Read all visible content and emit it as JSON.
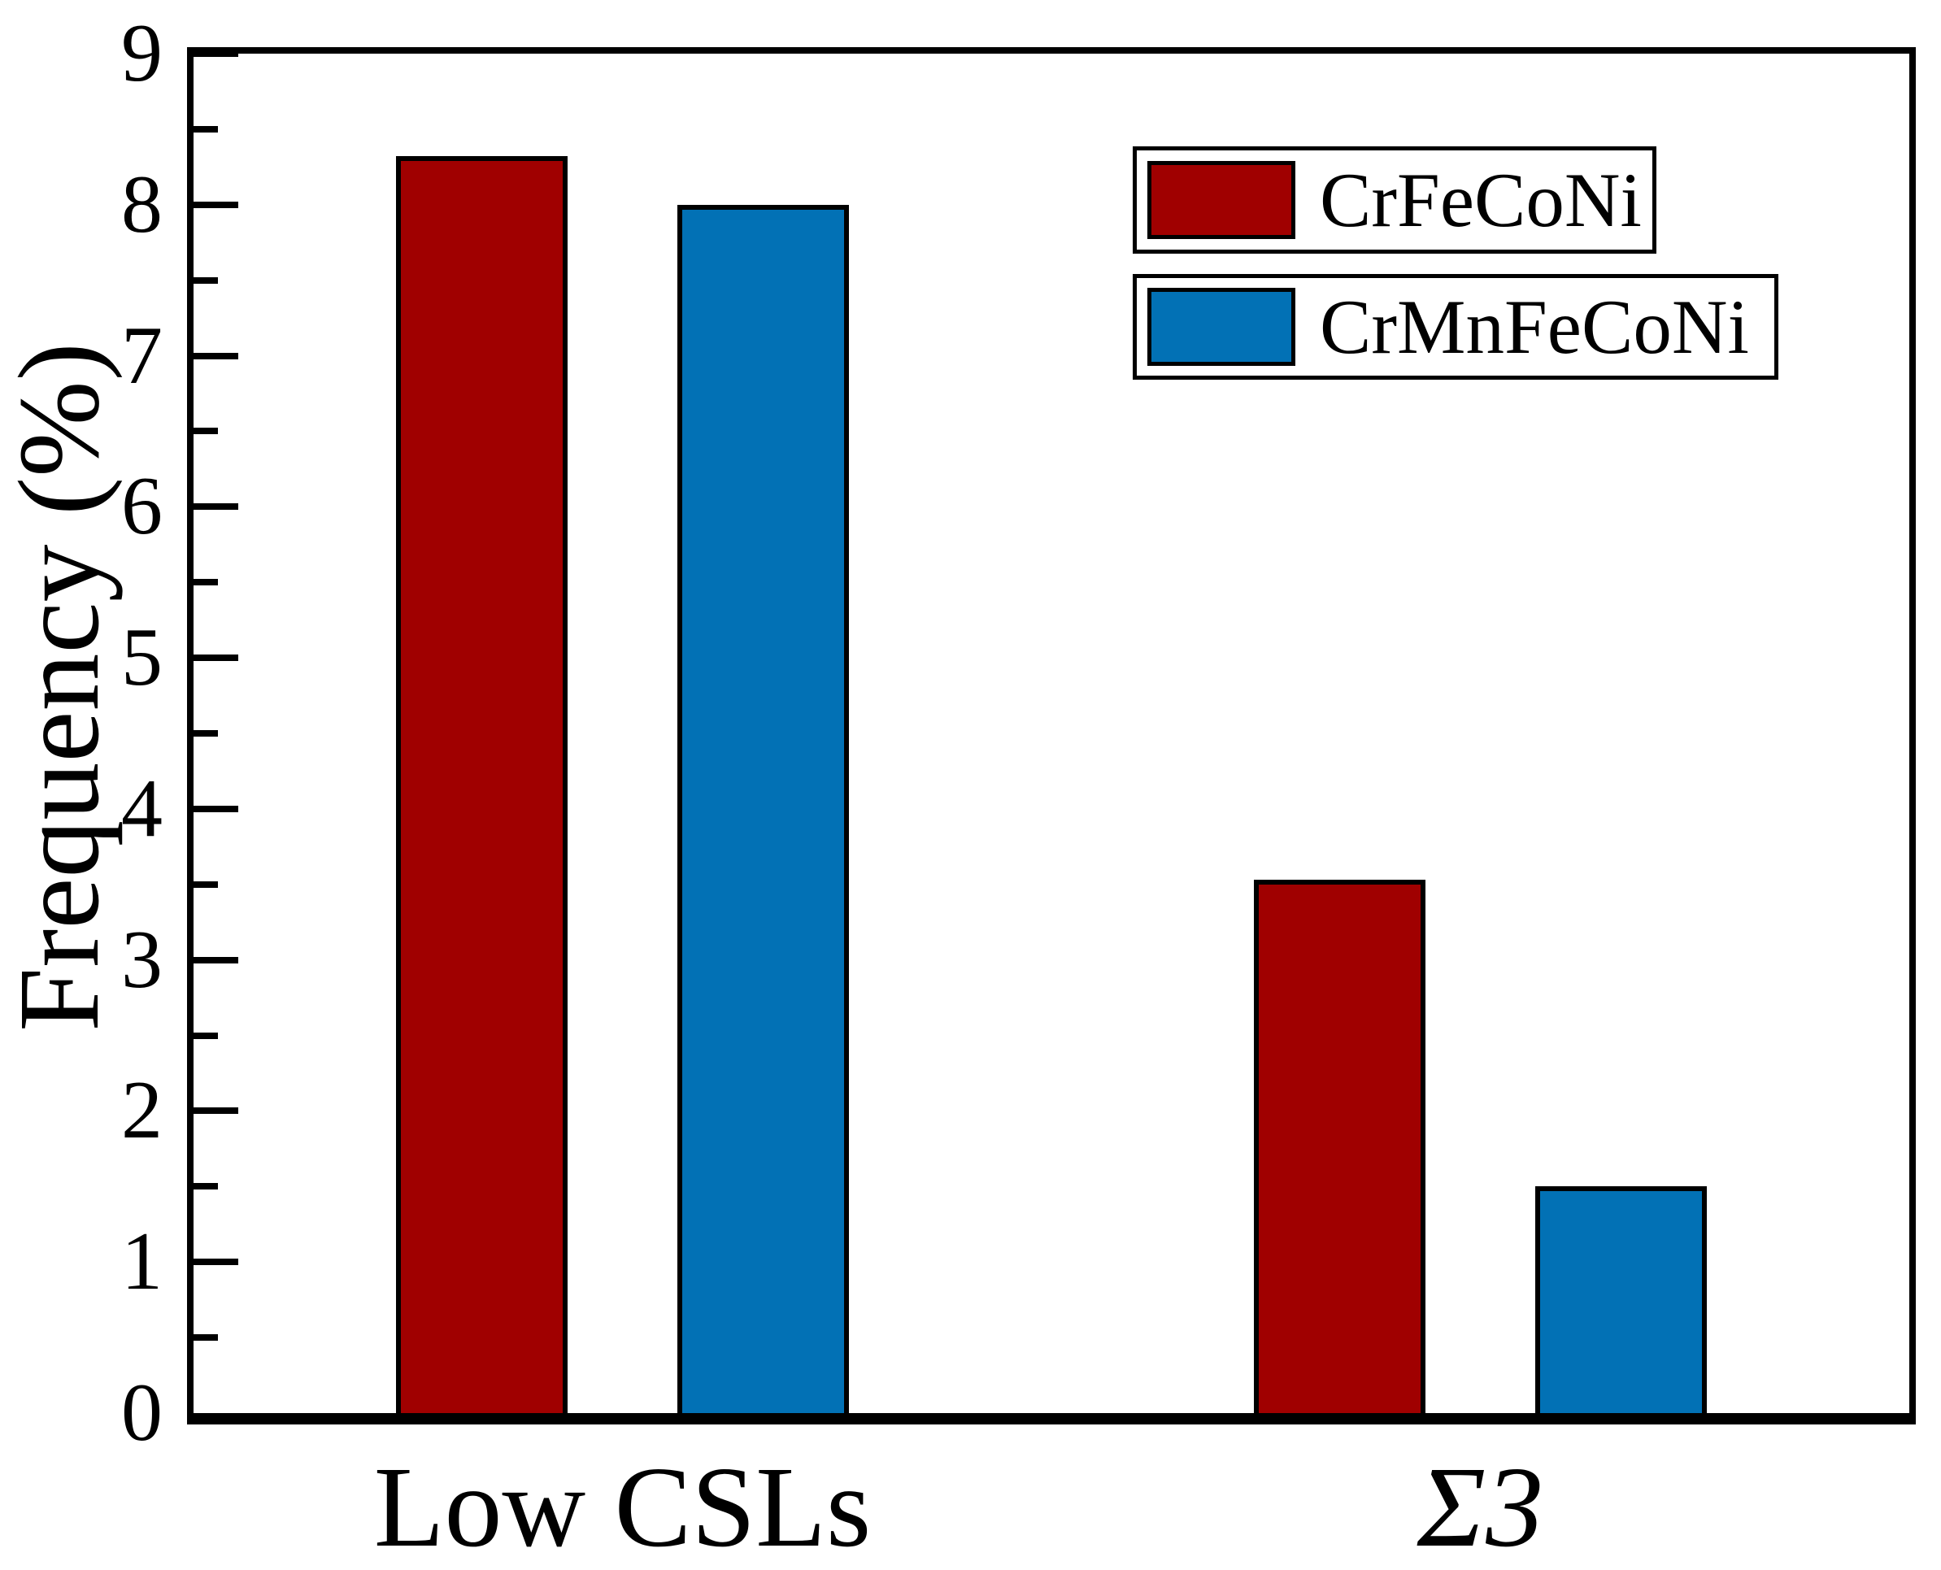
{
  "chart_data": {
    "type": "bar",
    "title": "",
    "xlabel": "",
    "ylabel": "Frequency (%)",
    "ylim": [
      0,
      9
    ],
    "yticks_major": [
      0,
      1,
      2,
      3,
      4,
      5,
      6,
      7,
      8,
      9
    ],
    "yticks_minor": [
      0.5,
      1.5,
      2.5,
      3.5,
      4.5,
      5.5,
      6.5,
      7.5,
      8.5
    ],
    "grid": false,
    "legend_position": "top-right",
    "categories": [
      {
        "label": "Low CSLs",
        "italic": false
      },
      {
        "label": "Σ3",
        "italic": true
      }
    ],
    "series": [
      {
        "name": "CrFeCoNi",
        "color": "#A00000",
        "values": [
          8.32,
          3.53
        ]
      },
      {
        "name": "CrMnFeCoNi",
        "color": "#0271B5",
        "values": [
          8.0,
          1.5
        ]
      }
    ]
  },
  "colors": {
    "axis": "#000000",
    "bar_border": "#000000",
    "background": "#FFFFFF"
  }
}
